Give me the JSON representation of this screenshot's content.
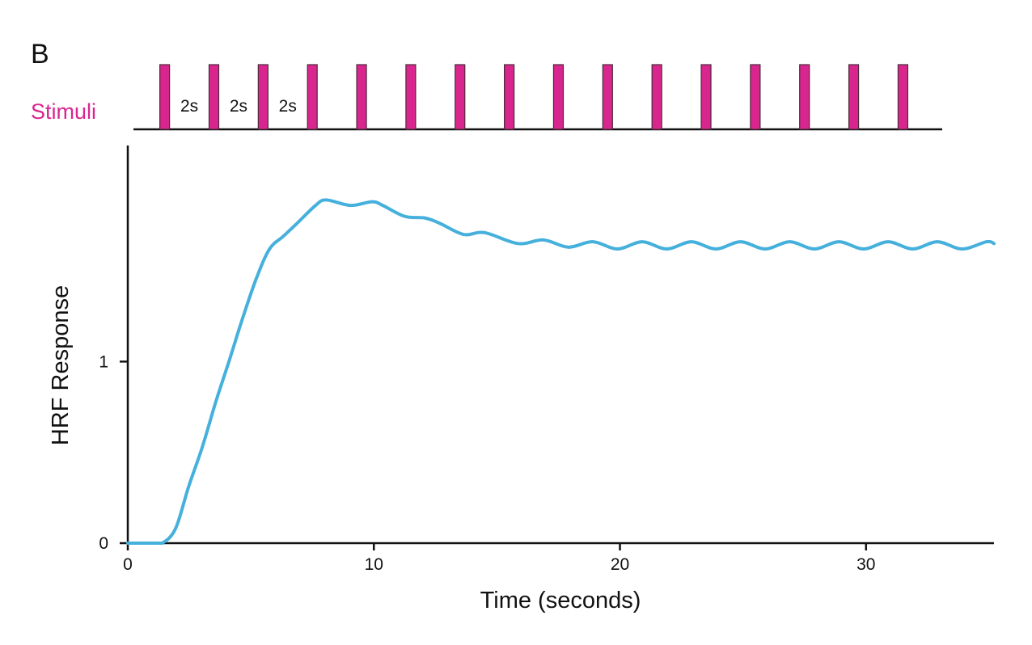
{
  "panel_label": "B",
  "stimuli": {
    "label": "Stimuli",
    "times": [
      1.5,
      3.5,
      5.5,
      7.5,
      9.5,
      11.5,
      13.5,
      15.5,
      17.5,
      19.5,
      21.5,
      23.5,
      25.5,
      27.5,
      29.5,
      31.5
    ],
    "interval_labels": [
      "2s",
      "2s",
      "2s"
    ],
    "color": "#d9268f"
  },
  "chart_data": {
    "type": "line",
    "title": "",
    "xlabel": "Time (seconds)",
    "ylabel": "HRF Response",
    "xlim": [
      0,
      35.2
    ],
    "ylim": [
      0,
      2.19
    ],
    "xticks": [
      0,
      10,
      20,
      30
    ],
    "yticks": [
      0,
      1
    ],
    "grid": false,
    "series": [
      {
        "color": "#45b0dc",
        "x": [
          0,
          1.0,
          1.4,
          1.94,
          2.47,
          3.03,
          3.58,
          4.11,
          4.67,
          5.23,
          5.76,
          6.32,
          6.87,
          7.63,
          8.06,
          9.05,
          9.93,
          10.36,
          11.25,
          12.1,
          12.7,
          13.65,
          14.5,
          15.85,
          16.9,
          17.9,
          18.9,
          19.9,
          20.9,
          21.9,
          22.9,
          23.9,
          24.9,
          25.9,
          26.9,
          27.9,
          28.9,
          29.9,
          30.9,
          31.9,
          32.9,
          33.9,
          34.9,
          35.2
        ],
        "y": [
          0,
          0,
          0,
          0.08,
          0.31,
          0.53,
          0.78,
          1.0,
          1.24,
          1.46,
          1.62,
          1.69,
          1.76,
          1.86,
          1.89,
          1.86,
          1.88,
          1.86,
          1.8,
          1.79,
          1.76,
          1.7,
          1.71,
          1.65,
          1.67,
          1.63,
          1.66,
          1.62,
          1.66,
          1.62,
          1.66,
          1.62,
          1.66,
          1.62,
          1.66,
          1.62,
          1.66,
          1.62,
          1.66,
          1.62,
          1.66,
          1.62,
          1.66,
          1.65
        ]
      }
    ]
  }
}
